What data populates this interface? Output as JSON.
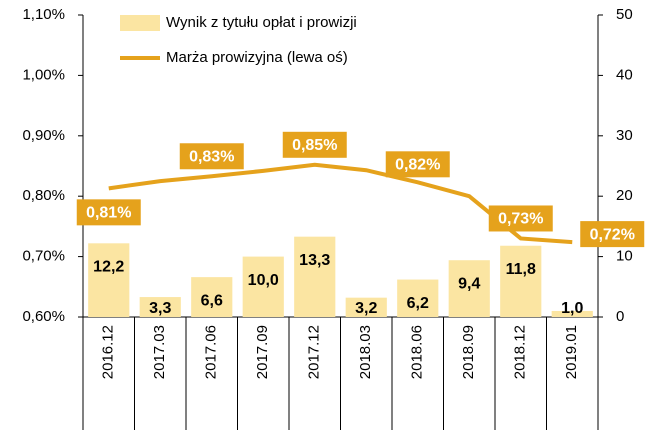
{
  "chart_data": {
    "type": "bar-line",
    "categories": [
      "2016.12",
      "2017.03",
      "2017.06",
      "2017.09",
      "2017.12",
      "2018.03",
      "2018.06",
      "2018.09",
      "2018.12",
      "2019.01"
    ],
    "series": [
      {
        "name": "Wynik z tytułu opłat i prowizji",
        "type": "bar",
        "axis": "y2",
        "color": "#fbe5a2",
        "values": [
          12.2,
          3.3,
          6.6,
          10.0,
          13.3,
          3.2,
          6.2,
          9.4,
          11.8,
          1.0
        ],
        "value_labels": [
          "12,2",
          "3,3",
          "6,6",
          "10,0",
          "13,3",
          "3,2",
          "6,2",
          "9,4",
          "11,8",
          "1,0"
        ]
      },
      {
        "name": "Marża prowizyjna (lewa oś)",
        "type": "line",
        "axis": "y",
        "color": "#e5a21c",
        "values": [
          0.813,
          0.825,
          0.833,
          0.842,
          0.852,
          0.843,
          0.823,
          0.8,
          0.73,
          0.724
        ],
        "value_labels": [
          "0,81%",
          null,
          "0,83%",
          null,
          "0,85%",
          null,
          "0,82%",
          null,
          "0,73%",
          "0,72%"
        ]
      }
    ],
    "ylim": [
      0.6,
      1.1
    ],
    "yticks": [
      {
        "value": 0.6,
        "label": "0,60%"
      },
      {
        "value": 0.7,
        "label": "0,70%"
      },
      {
        "value": 0.8,
        "label": "0,80%"
      },
      {
        "value": 0.9,
        "label": "0,90%"
      },
      {
        "value": 1.0,
        "label": "1,00%"
      },
      {
        "value": 1.1,
        "label": "1,10%"
      }
    ],
    "y2lim": [
      0,
      50
    ],
    "y2ticks": [
      0,
      10,
      20,
      30,
      40,
      50
    ],
    "grid": false
  }
}
